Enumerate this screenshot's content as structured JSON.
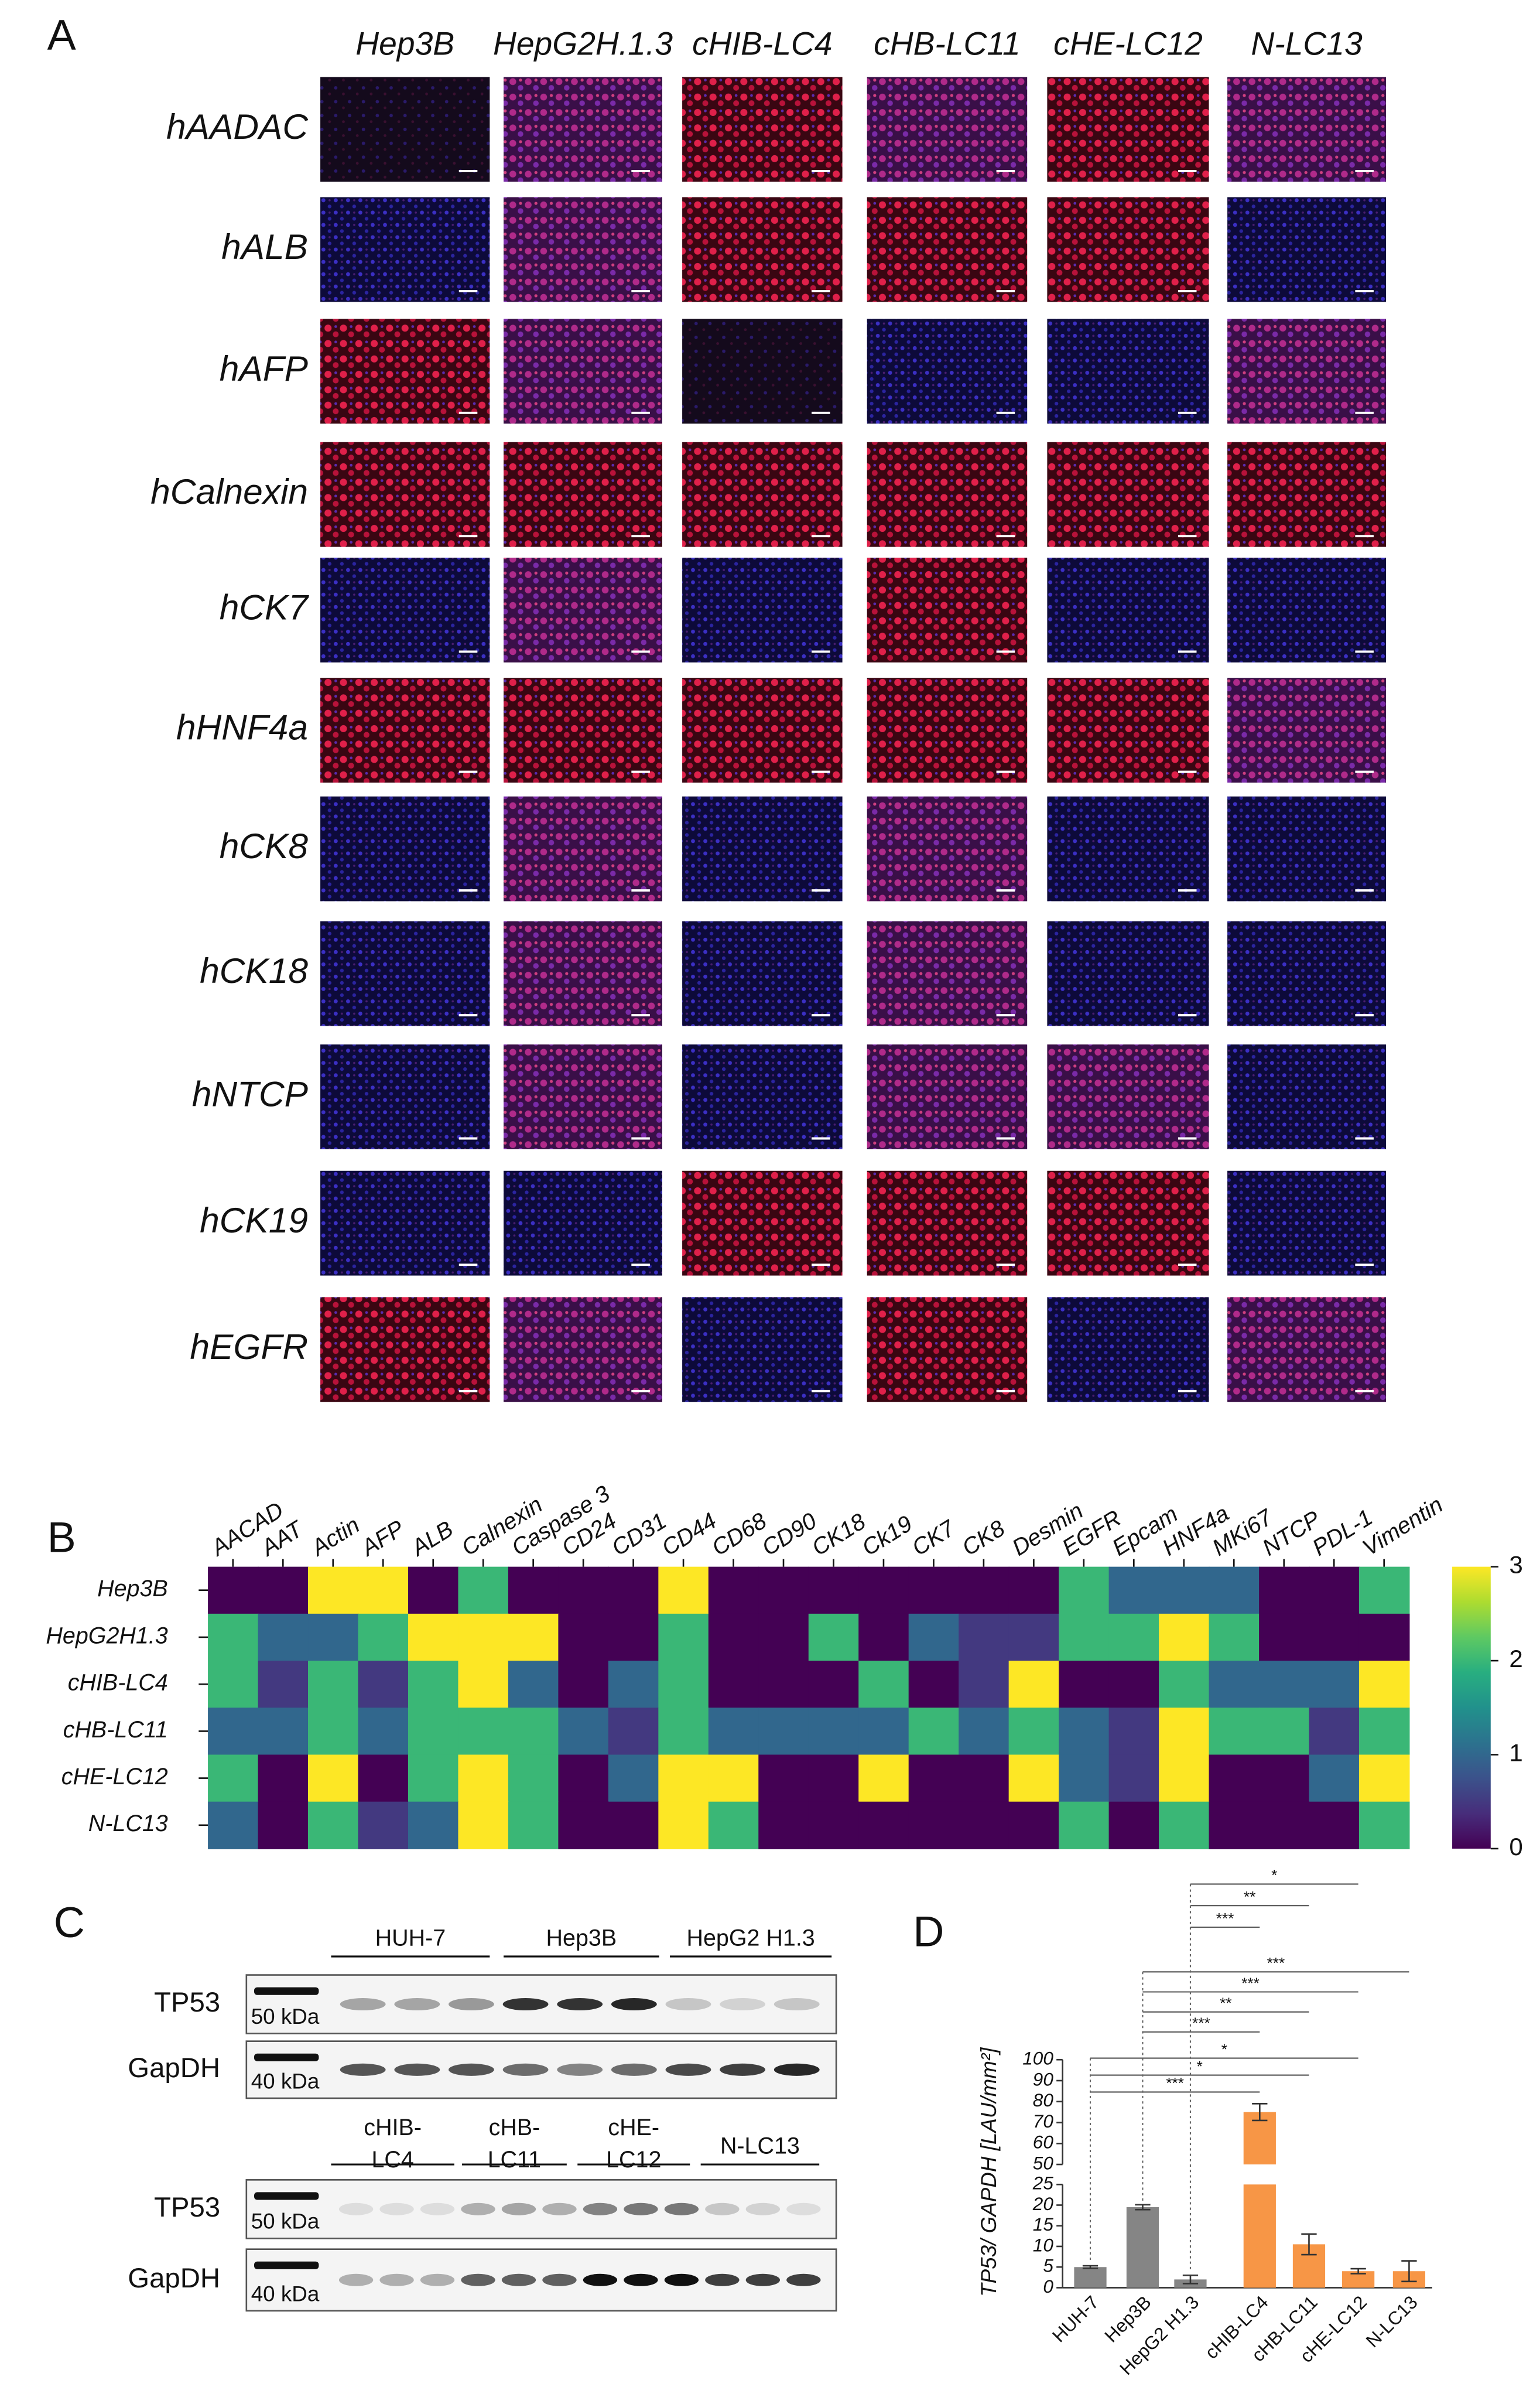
{
  "panel_labels": [
    "A",
    "B",
    "C",
    "D"
  ],
  "panel_a": {
    "columns": [
      "Hep3B",
      "HepG2H.1.3",
      "cHIB-LC4",
      "cHB-LC11",
      "cHE-LC12",
      "N-LC13"
    ],
    "rows": [
      "hAADAC",
      "hALB",
      "hAFP",
      "hCalnexin",
      "hCK7",
      "hHNF4a",
      "hCK8",
      "hCK18",
      "hNTCP",
      "hCK19",
      "hEGFR"
    ]
  },
  "chart_data": [
    {
      "type": "heatmap",
      "x_categories": [
        "AACAD",
        "AAT",
        "Actin",
        "AFP",
        "ALB",
        "Calnexin",
        "Caspase 3",
        "CD24",
        "CD31",
        "CD44",
        "CD68",
        "CD90",
        "CK18",
        "Ck19",
        "CK7",
        "CK8",
        "Desmin",
        "EGFR",
        "Epcam",
        "HNF4a",
        "MKi67",
        "NTCP",
        "PDL-1",
        "Vimentin"
      ],
      "y_categories": [
        "Hep3B",
        "HepG2H1.3",
        "cHIB-LC4",
        "cHB-LC11",
        "cHE-LC12",
        "N-LC13"
      ],
      "values": [
        [
          0,
          0,
          3,
          3,
          0,
          2,
          0,
          0,
          0,
          3,
          0,
          0,
          0,
          0,
          0,
          0,
          0,
          2,
          1,
          1,
          1,
          0,
          0,
          2
        ],
        [
          2,
          1,
          1,
          2,
          3,
          3,
          3,
          0,
          0,
          2,
          0,
          0,
          2,
          0,
          1,
          0.5,
          0.5,
          2,
          2,
          3,
          2,
          0,
          0,
          0
        ],
        [
          2,
          0.5,
          2,
          0.5,
          2,
          3,
          1,
          0,
          1,
          2,
          0,
          0,
          0,
          2,
          0,
          0.5,
          3,
          0,
          0,
          2,
          1,
          1,
          1,
          3
        ],
        [
          1,
          1,
          2,
          1,
          2,
          2,
          2,
          1,
          0.5,
          2,
          1,
          1,
          1,
          1,
          2,
          1,
          2,
          1,
          0.5,
          3,
          2,
          2,
          0.5,
          2
        ],
        [
          2,
          0,
          3,
          0,
          2,
          3,
          2,
          0,
          1,
          3,
          3,
          0,
          0,
          3,
          0,
          0,
          3,
          1,
          0.5,
          3,
          0,
          0,
          1,
          3
        ],
        [
          1,
          0,
          2,
          0.5,
          1,
          3,
          2,
          0,
          0,
          3,
          2,
          0,
          0,
          0,
          0,
          0,
          0,
          2,
          0,
          2,
          0,
          0,
          0,
          2
        ]
      ],
      "clim": [
        0,
        3
      ],
      "colorbar_ticks": [
        0,
        1,
        2,
        3
      ],
      "colormap": "viridis"
    },
    {
      "type": "bar",
      "ylabel": "TP53/ GAPDH [LAU/mm²]",
      "categories": [
        "HUH-7",
        "Hep3B",
        "HepG2 H1.3",
        "cHIB-LC4",
        "cHB-LC11",
        "cHE-LC12",
        "N-LC13"
      ],
      "values": [
        5,
        19.5,
        2,
        75,
        10.5,
        4,
        4
      ],
      "errors": [
        0.3,
        0.6,
        1,
        4,
        2.5,
        0.6,
        2.5
      ],
      "colors": [
        "#858585",
        "#858585",
        "#858585",
        "#f79646",
        "#f79646",
        "#f79646",
        "#f79646"
      ],
      "ylim": [
        0,
        100
      ],
      "axis_break": [
        25,
        50
      ],
      "yticks": [
        0,
        5,
        10,
        15,
        20,
        25,
        50,
        60,
        70,
        80,
        90,
        100
      ],
      "significance": [
        {
          "from": "HUH-7",
          "to": "cHIB-LC4",
          "label": "***"
        },
        {
          "from": "HUH-7",
          "to": "cHB-LC11",
          "label": "*"
        },
        {
          "from": "HUH-7",
          "to": "cHE-LC12",
          "label": "*"
        },
        {
          "from": "Hep3B",
          "to": "cHIB-LC4",
          "label": "***"
        },
        {
          "from": "Hep3B",
          "to": "cHB-LC11",
          "label": "**"
        },
        {
          "from": "Hep3B",
          "to": "cHE-LC12",
          "label": "***"
        },
        {
          "from": "Hep3B",
          "to": "N-LC13",
          "label": "***"
        },
        {
          "from": "HepG2 H1.3",
          "to": "cHIB-LC4",
          "label": "***"
        },
        {
          "from": "HepG2 H1.3",
          "to": "cHB-LC11",
          "label": "**"
        },
        {
          "from": "HepG2 H1.3",
          "to": "cHE-LC12",
          "label": "*"
        }
      ]
    }
  ],
  "panel_c": {
    "top": {
      "groups": [
        [
          "HUH-7"
        ],
        [
          "Hep3B"
        ],
        [
          "HepG2 H1.3"
        ]
      ],
      "rows": [
        {
          "protein": "TP53",
          "marker": "50 kDa"
        },
        {
          "protein": "GapDH",
          "marker": "40 kDa"
        }
      ]
    },
    "bottom": {
      "groups": [
        [
          "cHIB-",
          "LC4"
        ],
        [
          "cHB-",
          "LC11"
        ],
        [
          "cHE-",
          "LC12"
        ],
        [
          "N-LC13"
        ]
      ],
      "rows": [
        {
          "protein": "TP53",
          "marker": "50 kDa"
        },
        {
          "protein": "GapDH",
          "marker": "40 kDa"
        }
      ]
    }
  }
}
